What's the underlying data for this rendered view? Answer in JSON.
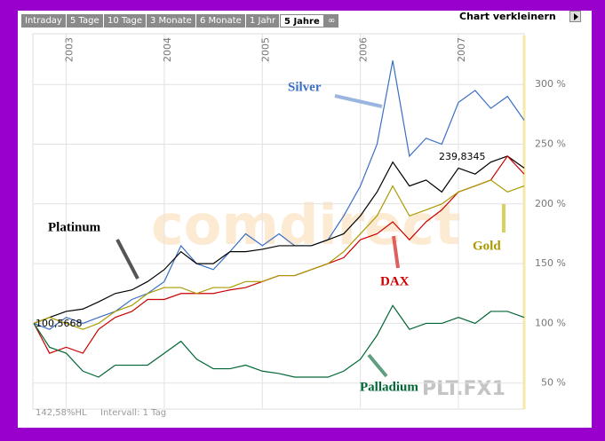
{
  "toolbar": {
    "tabs": [
      "Intraday",
      "5 Tage",
      "10 Tage",
      "3 Monate",
      "6 Monate",
      "1 Jahr",
      "5 Jahre",
      "∞"
    ],
    "active_tab": 6,
    "shrink_button": "Chart verkleinern"
  },
  "footer": {
    "range": "142,58%HL",
    "interval": "Intervall: 1 Tag"
  },
  "watermarks": [
    "comdirect",
    "PLT.FX1"
  ],
  "chart_data": {
    "type": "line",
    "annotations": [
      "239,8345",
      "100,5668"
    ],
    "x": [
      2002.67,
      2002.83,
      2003.0,
      2003.17,
      2003.33,
      2003.5,
      2003.67,
      2003.83,
      2004.0,
      2004.17,
      2004.33,
      2004.5,
      2004.67,
      2004.83,
      2005.0,
      2005.17,
      2005.33,
      2005.5,
      2005.67,
      2005.83,
      2006.0,
      2006.17,
      2006.33,
      2006.5,
      2006.67,
      2006.83,
      2007.0,
      2007.17,
      2007.33,
      2007.5,
      2007.67
    ],
    "xlim": [
      2002.66,
      2007.67
    ],
    "xticks": [
      2003,
      2004,
      2005,
      2006,
      2007
    ],
    "ylim": [
      29,
      341
    ],
    "yticks": [
      {
        "value": 50,
        "label": "50 %"
      },
      {
        "value": 100,
        "label": "100 %"
      },
      {
        "value": 150,
        "label": "150 %"
      },
      {
        "value": 200,
        "label": "200 %"
      },
      {
        "value": 250,
        "label": "250 %"
      },
      {
        "value": 300,
        "label": "300 %"
      }
    ],
    "grid": true,
    "series": [
      {
        "name": "Silver",
        "color": "#3a6fc4",
        "values": [
          100,
          95,
          105,
          100,
          105,
          110,
          120,
          125,
          135,
          165,
          150,
          145,
          160,
          175,
          165,
          175,
          165,
          165,
          170,
          190,
          215,
          250,
          320,
          240,
          255,
          250,
          285,
          295,
          280,
          290,
          270
        ]
      },
      {
        "name": "Platinum",
        "color": "#000000",
        "values": [
          100,
          105,
          110,
          112,
          118,
          125,
          128,
          135,
          145,
          160,
          150,
          150,
          160,
          160,
          162,
          165,
          165,
          165,
          170,
          175,
          190,
          210,
          235,
          215,
          220,
          210,
          230,
          225,
          235,
          240,
          230
        ]
      },
      {
        "name": "DAX",
        "color": "#cc0000",
        "values": [
          100,
          75,
          80,
          75,
          95,
          105,
          110,
          120,
          120,
          125,
          125,
          125,
          128,
          130,
          135,
          140,
          140,
          145,
          150,
          155,
          170,
          175,
          185,
          170,
          185,
          195,
          210,
          215,
          220,
          240,
          225
        ]
      },
      {
        "name": "Gold",
        "color": "#aa9a00",
        "values": [
          100,
          105,
          100,
          95,
          100,
          110,
          115,
          125,
          130,
          130,
          125,
          130,
          130,
          135,
          135,
          140,
          140,
          145,
          150,
          160,
          175,
          190,
          215,
          190,
          195,
          200,
          210,
          215,
          220,
          210,
          215
        ]
      },
      {
        "name": "Palladium",
        "color": "#006633",
        "values": [
          100,
          80,
          75,
          60,
          55,
          65,
          65,
          65,
          75,
          85,
          70,
          62,
          62,
          65,
          60,
          58,
          55,
          55,
          55,
          60,
          70,
          90,
          115,
          95,
          100,
          100,
          105,
          100,
          110,
          110,
          105
        ]
      }
    ]
  }
}
